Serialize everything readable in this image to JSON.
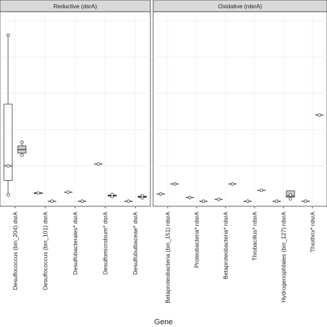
{
  "chart_data": {
    "type": "boxplot",
    "xlabel": "Gene",
    "ylabel": "",
    "ylim": [
      0,
      100
    ],
    "grid": true,
    "facets": [
      {
        "title": "Reductive (dsrA)",
        "categories": [
          "Desulfococcus (bin_204) dsrA",
          "Desulfococcus (bin_101) dsrA",
          "Desulfobacterales* dsrA",
          "Desulfomicrobium* dsrA",
          "Desulfobulbaceae* dsrA"
        ],
        "groups": [
          {
            "boxes": [
              {
                "min": 4,
                "q1": 12,
                "median": 20,
                "q3": 54,
                "max": 92,
                "fill": "#ffffff",
                "outliers": [
                  4,
                  20,
                  92
                ]
              },
              {
                "min": 26,
                "q1": 27,
                "median": 29,
                "q3": 31,
                "max": 33,
                "fill": "#cccccc",
                "outliers": [
                  26,
                  33
                ]
              }
            ]
          },
          {
            "boxes": [
              {
                "min": 4.5,
                "q1": 4.8,
                "median": 5,
                "q3": 5.2,
                "max": 5.5,
                "fill": "#cccccc",
                "outliers": [
                  5
                ]
              },
              {
                "min": 0.5,
                "q1": 0.5,
                "median": 0.5,
                "q3": 0.5,
                "max": 0.5,
                "fill": "#ffffff",
                "outliers": [
                  0.5
                ]
              }
            ]
          },
          {
            "boxes": [
              {
                "min": 5.5,
                "q1": 5.5,
                "median": 5.5,
                "q3": 5.5,
                "max": 5.5,
                "fill": "#ffffff",
                "outliers": [
                  5.5
                ]
              },
              {
                "min": 0.5,
                "q1": 0.5,
                "median": 0.5,
                "q3": 0.5,
                "max": 0.5,
                "fill": "#ffffff",
                "outliers": [
                  0.5
                ]
              }
            ]
          },
          {
            "boxes": [
              {
                "min": 21,
                "q1": 21,
                "median": 21,
                "q3": 21,
                "max": 21,
                "fill": "#ffffff",
                "outliers": [
                  21
                ]
              },
              {
                "min": 3,
                "q1": 3.3,
                "median": 3.6,
                "q3": 3.9,
                "max": 4.2,
                "fill": "#cccccc",
                "outliers": [
                  3,
                  4.2
                ]
              }
            ]
          },
          {
            "boxes": [
              {
                "min": 0.5,
                "q1": 0.5,
                "median": 0.5,
                "q3": 0.5,
                "max": 0.5,
                "fill": "#ffffff",
                "outliers": [
                  0.5
                ]
              },
              {
                "min": 2.3,
                "q1": 2.6,
                "median": 3,
                "q3": 3.3,
                "max": 3.5,
                "fill": "#cccccc",
                "outliers": [
                  2.3,
                  3.5
                ]
              }
            ]
          }
        ]
      },
      {
        "title": "Oxidative (rdsrA)",
        "categories": [
          "Betaproteobacteria (bin_151) rdsrA",
          "Proteobacteria* rdsrA",
          "Betaproteobacteria* rdsrA",
          "Thiobacillus* rdsrA",
          "Hydrogenophilales (bin_127) rdsrA",
          "Thiothrix* rdsrA"
        ],
        "groups": [
          {
            "boxes": [
              {
                "min": 4.5,
                "q1": 4.5,
                "median": 4.5,
                "q3": 4.5,
                "max": 4.5,
                "fill": "#ffffff",
                "outliers": [
                  4.5
                ]
              },
              {
                "min": 10,
                "q1": 10,
                "median": 10,
                "q3": 10,
                "max": 10,
                "fill": "#ffffff",
                "outliers": [
                  10
                ]
              }
            ]
          },
          {
            "boxes": [
              {
                "min": 2.5,
                "q1": 2.5,
                "median": 2.5,
                "q3": 2.5,
                "max": 2.5,
                "fill": "#ffffff",
                "outliers": [
                  2.5
                ]
              },
              {
                "min": 0.5,
                "q1": 0.5,
                "median": 0.5,
                "q3": 0.5,
                "max": 0.5,
                "fill": "#ffffff",
                "outliers": [
                  0.5
                ]
              }
            ]
          },
          {
            "boxes": [
              {
                "min": 1.5,
                "q1": 1.5,
                "median": 1.5,
                "q3": 1.5,
                "max": 1.5,
                "fill": "#ffffff",
                "outliers": [
                  1.5
                ]
              },
              {
                "min": 10,
                "q1": 10,
                "median": 10,
                "q3": 10,
                "max": 10,
                "fill": "#ffffff",
                "outliers": [
                  10
                ]
              }
            ]
          },
          {
            "boxes": [
              {
                "min": 0.5,
                "q1": 0.5,
                "median": 0.5,
                "q3": 0.5,
                "max": 0.5,
                "fill": "#ffffff",
                "outliers": [
                  0.5
                ]
              },
              {
                "min": 6.5,
                "q1": 6.5,
                "median": 6.5,
                "q3": 6.5,
                "max": 6.5,
                "fill": "#ffffff",
                "outliers": [
                  6.5
                ]
              }
            ]
          },
          {
            "boxes": [
              {
                "min": 0.5,
                "q1": 0.5,
                "median": 0.5,
                "q3": 0.5,
                "max": 0.5,
                "fill": "#ffffff",
                "outliers": [
                  0.5
                ]
              },
              {
                "min": 1.5,
                "q1": 2.7,
                "median": 3.4,
                "q3": 6.2,
                "max": 6.5,
                "fill": "#cccccc",
                "outliers": [
                  1.8,
                  4
                ]
              }
            ]
          },
          {
            "boxes": [
              {
                "min": 0.5,
                "q1": 0.5,
                "median": 0.5,
                "q3": 0.5,
                "max": 0.5,
                "fill": "#ffffff",
                "outliers": [
                  0.5
                ]
              },
              {
                "min": 48,
                "q1": 48,
                "median": 48,
                "q3": 48,
                "max": 48,
                "fill": "#ffffff",
                "outliers": [
                  48
                ]
              }
            ]
          }
        ]
      }
    ]
  }
}
